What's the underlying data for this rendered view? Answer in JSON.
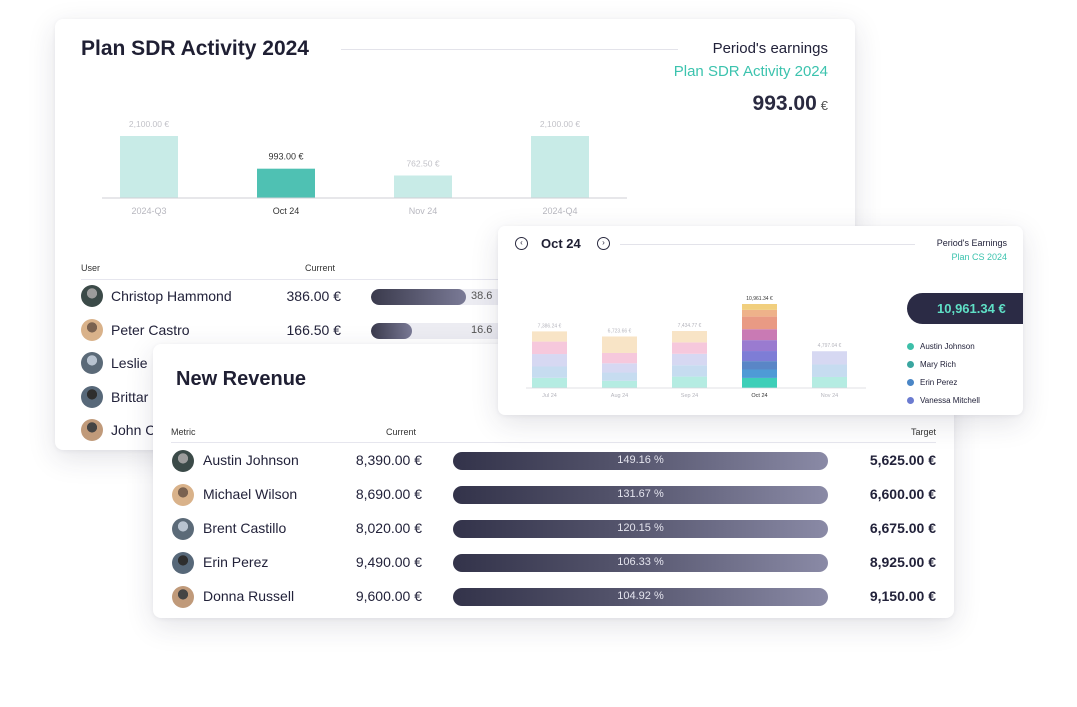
{
  "sdr_card": {
    "title": "Plan SDR Activity 2024",
    "earnings_label": "Period's earnings",
    "plan_name": "Plan SDR Activity 2024",
    "amount": "993.00",
    "currency": "€",
    "columns": {
      "user": "User",
      "current": "Current"
    },
    "users": [
      {
        "name": "Christop Hammond",
        "current": "386.00 €",
        "progress_fraction": 0.68,
        "pct_visible": "38.6"
      },
      {
        "name": "Peter Castro",
        "current": "166.50 €",
        "progress_fraction": 0.29,
        "pct_visible": "16.6"
      },
      {
        "name": "Leslie",
        "current": "",
        "progress_fraction": 0,
        "pct_visible": ""
      },
      {
        "name": "Brittar",
        "current": "",
        "progress_fraction": 0,
        "pct_visible": ""
      },
      {
        "name": "John C",
        "current": "",
        "progress_fraction": 0,
        "pct_visible": ""
      }
    ]
  },
  "chart_data": [
    {
      "type": "bar",
      "categories": [
        "2024-Q3",
        "Oct 24",
        "Nov 24",
        "2024-Q4"
      ],
      "values": [
        2100.0,
        993.0,
        762.5,
        2100.0
      ],
      "value_labels": [
        "2,100.00 €",
        "993.00 €",
        "762.50 €",
        "2,100.00 €"
      ],
      "highlighted": "Oct 24",
      "colors": {
        "normal": "#c8ebe7",
        "highlight": "#4fc1b3"
      },
      "ylim": [
        0,
        2100
      ]
    },
    {
      "type": "bar",
      "stacked": true,
      "categories": [
        "Jul 24",
        "Aug 24",
        "Sep 24",
        "Oct 24",
        "Nov 24"
      ],
      "totals": [
        7386.24,
        6723.66,
        7434.77,
        10961.34,
        4797.04
      ],
      "total_labels": [
        "7,386.24 €",
        "6,723.66 €",
        "7,434.77 €",
        "10,961.34 €",
        "4,797.04 €"
      ],
      "highlighted": "Oct 24",
      "segment_shares": [
        [
          0.18,
          0.2,
          0.22,
          0.22,
          0.18
        ],
        [
          0.14,
          0.16,
          0.18,
          0.2,
          0.32
        ],
        [
          0.2,
          0.2,
          0.2,
          0.2,
          0.2
        ],
        [
          0.12,
          0.1,
          0.1,
          0.12,
          0.13,
          0.13,
          0.15,
          0.08,
          0.07
        ],
        [
          0.3,
          0.34,
          0.36
        ]
      ],
      "segment_colors_light": [
        "#b5ece2",
        "#c6dcf0",
        "#d6d8f2",
        "#f6c8dc",
        "#f8e4c6",
        "#f6dfa8",
        "#f7c6b2"
      ],
      "segment_colors_highlight": [
        "#3dcfb8",
        "#4e9bd6",
        "#5a86c6",
        "#7e7dd6",
        "#9a7bd0",
        "#c97ab4",
        "#e99a84",
        "#eeb28a",
        "#f1cf7e"
      ],
      "ylim": [
        0,
        10961.34
      ]
    }
  ],
  "revenue_card": {
    "title": "New Revenue",
    "columns": {
      "metric": "Metric",
      "current": "Current",
      "target": "Target"
    },
    "rows": [
      {
        "name": "Austin Johnson",
        "current": "8,390.00 €",
        "pct": "149.16 %",
        "target": "5,625.00 €"
      },
      {
        "name": "Michael Wilson",
        "current": "8,690.00 €",
        "pct": "131.67 %",
        "target": "6,600.00 €"
      },
      {
        "name": "Brent Castillo",
        "current": "8,020.00 €",
        "pct": "120.15 %",
        "target": "6,675.00 €"
      },
      {
        "name": "Erin Perez",
        "current": "9,490.00 €",
        "pct": "106.33 %",
        "target": "8,925.00 €"
      },
      {
        "name": "Donna Russell",
        "current": "9,600.00 €",
        "pct": "104.92 %",
        "target": "9,150.00 €"
      }
    ]
  },
  "cs_card": {
    "period": "Oct 24",
    "prev_icon": "chevron-left-circle-icon",
    "next_icon": "chevron-right-circle-icon",
    "earnings_label": "Period's Earnings",
    "plan_name": "Plan CS 2024",
    "total": "10,961.34 €",
    "legend": [
      {
        "name": "Austin Johnson",
        "color": "#3dbfa9"
      },
      {
        "name": "Mary Rich",
        "color": "#3aa6a0"
      },
      {
        "name": "Erin Perez",
        "color": "#4a86c6"
      },
      {
        "name": "Vanessa Mitchell",
        "color": "#6b7bd0"
      }
    ]
  },
  "avatar_palette": [
    "#3b4a48",
    "#9c9c9c",
    "#d9b28a",
    "#7a6250",
    "#5b6a78",
    "#b8c3d0",
    "#576879",
    "#2e2e2e",
    "#c09a7a",
    "#444444"
  ]
}
